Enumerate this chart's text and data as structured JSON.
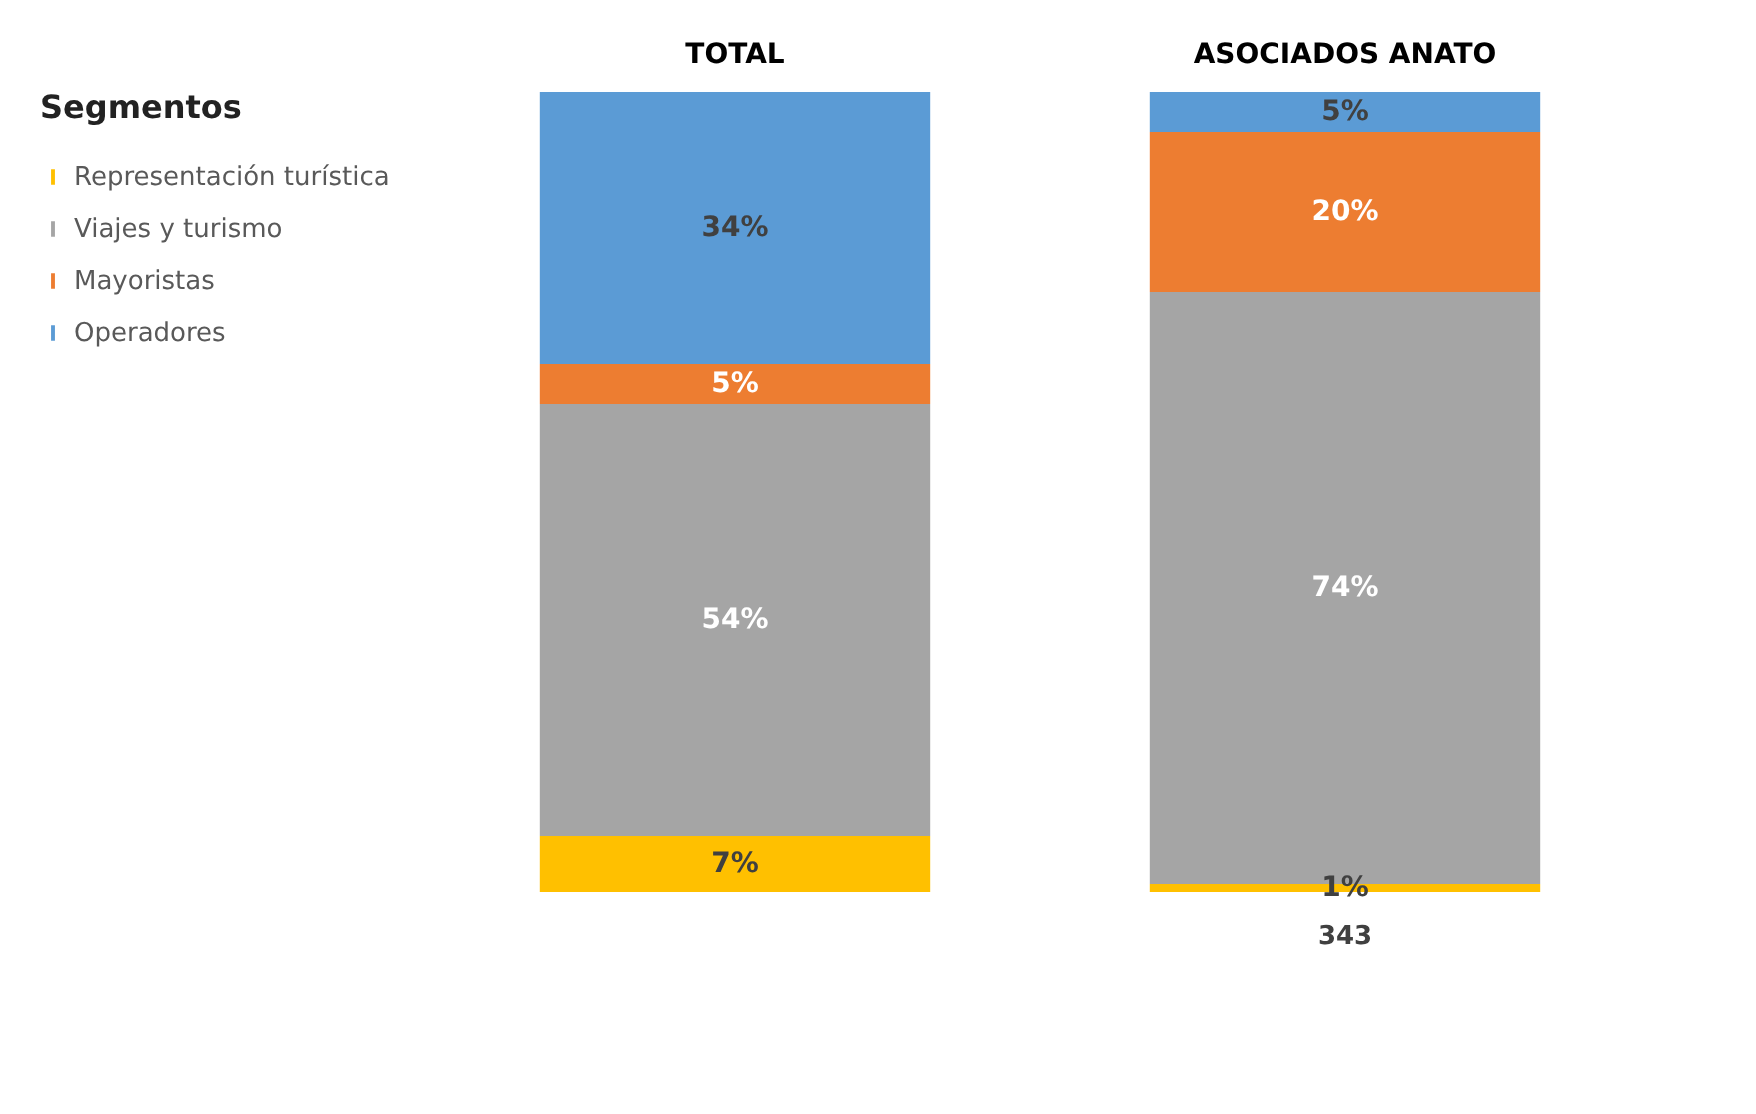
{
  "chart_data": {
    "type": "bar",
    "stacked": true,
    "legend": "left",
    "legend_title": "Segmentos",
    "tick_labels": "x",
    "categories": [
      "TOTAL",
      "ASOCIADOS ANATO"
    ],
    "series": [
      {
        "name": "Representación turística",
        "color": "#ffc000",
        "values": [
          7,
          1
        ],
        "value_labels": [
          "7%",
          "1%"
        ]
      },
      {
        "name": "Viajes y turismo",
        "color": "#a5a5a5",
        "values": [
          54,
          74
        ],
        "value_labels": [
          "54%",
          "74%"
        ]
      },
      {
        "name": "Mayoristas",
        "color": "#ed7d31",
        "values": [
          5,
          20
        ],
        "value_labels": [
          "5%",
          "20%"
        ]
      },
      {
        "name": "Operadores",
        "color": "#5b9bd5",
        "values": [
          34,
          5
        ],
        "value_labels": [
          "34%",
          "5%"
        ]
      }
    ],
    "annotations": [
      "343"
    ]
  }
}
